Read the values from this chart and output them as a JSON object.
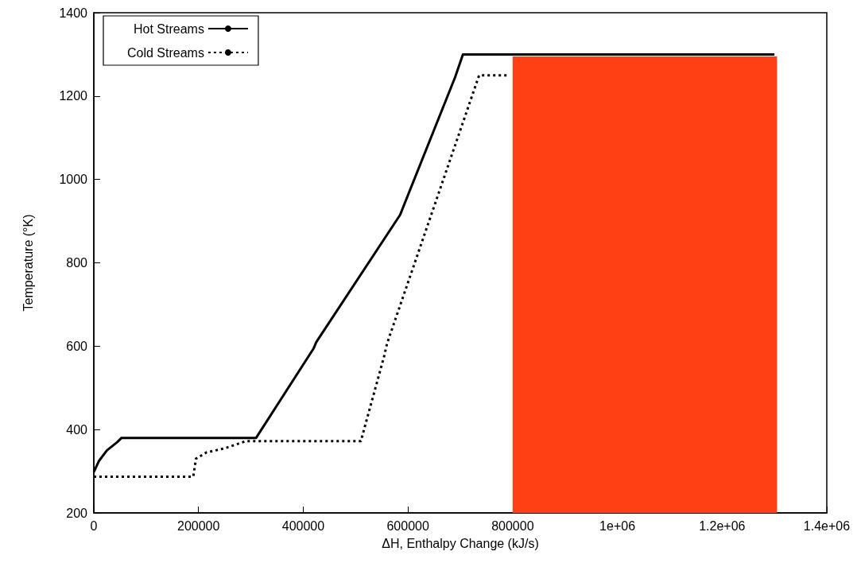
{
  "chart_data": {
    "type": "line",
    "xlabel": "ΔH, Enthalpy Change (kJ/s)",
    "ylabel": "Temperature (°K)",
    "xlim": [
      0,
      1400000
    ],
    "xticks": [
      0,
      200000,
      400000,
      600000,
      800000,
      {
        "value": 1000000,
        "label": "1e+06"
      },
      {
        "value": 1200000,
        "label": "1.2e+06"
      },
      {
        "value": 1400000,
        "label": "1.4e+06"
      }
    ],
    "ylim": [
      200,
      1400
    ],
    "yticks": [
      200,
      400,
      600,
      800,
      1000,
      1200,
      1400
    ],
    "grid": false,
    "legend": "top left",
    "marker": "none",
    "series": [
      {
        "name": "Hot Streams",
        "color": "#000000",
        "line_style": "solid",
        "x": [
          0,
          10000,
          25000,
          45000,
          53000,
          310000,
          420000,
          425000,
          585000,
          690000,
          705000,
          1300000
        ],
        "values": [
          298,
          325,
          350,
          370,
          380,
          380,
          595,
          610,
          915,
          1245,
          1300,
          1300
        ]
      },
      {
        "name": "Cold Streams",
        "color": "#000000",
        "line_style": "dotted",
        "x": [
          0,
          190000,
          195000,
          215000,
          250000,
          290000,
          510000,
          555000,
          560000,
          736000,
          790000
        ],
        "values": [
          287,
          287,
          330,
          345,
          355,
          372,
          372,
          578,
          606,
          1250,
          1250
        ]
      },
      {
        "type": "area",
        "color": "#ff4015",
        "x": [
          800000,
          1305000
        ],
        "values": [
          1295,
          1295
        ]
      }
    ]
  }
}
